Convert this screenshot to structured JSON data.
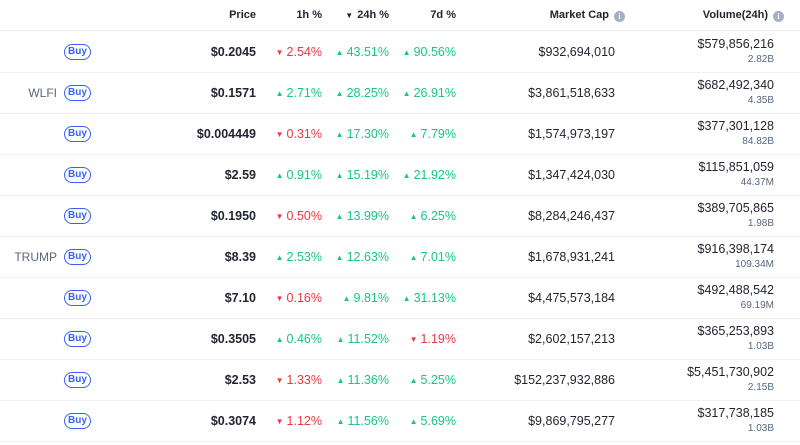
{
  "headers": {
    "price": "Price",
    "h1": "1h %",
    "h24": "24h %",
    "d7": "7d %",
    "market_cap": "Market Cap",
    "volume": "Volume(24h)"
  },
  "buy_label": "Buy",
  "colors": {
    "up": "#16c784",
    "down": "#ea3943",
    "accent": "#3861fb"
  },
  "rows": [
    {
      "symbol": "",
      "price": "$0.2045",
      "h1": "2.54%",
      "h1_dir": "down",
      "h24": "43.51%",
      "h24_dir": "up",
      "d7": "90.56%",
      "d7_dir": "up",
      "market_cap": "$932,694,010",
      "volume": "$579,856,216",
      "volume_sub": "2.82B"
    },
    {
      "symbol": "WLFI",
      "price": "$0.1571",
      "h1": "2.71%",
      "h1_dir": "up",
      "h24": "28.25%",
      "h24_dir": "up",
      "d7": "26.91%",
      "d7_dir": "up",
      "market_cap": "$3,861,518,633",
      "volume": "$682,492,340",
      "volume_sub": "4.35B"
    },
    {
      "symbol": "",
      "price": "$0.004449",
      "h1": "0.31%",
      "h1_dir": "down",
      "h24": "17.30%",
      "h24_dir": "up",
      "d7": "7.79%",
      "d7_dir": "up",
      "market_cap": "$1,574,973,197",
      "volume": "$377,301,128",
      "volume_sub": "84.82B"
    },
    {
      "symbol": "",
      "price": "$2.59",
      "h1": "0.91%",
      "h1_dir": "up",
      "h24": "15.19%",
      "h24_dir": "up",
      "d7": "21.92%",
      "d7_dir": "up",
      "market_cap": "$1,347,424,030",
      "volume": "$115,851,059",
      "volume_sub": "44.37M"
    },
    {
      "symbol": "",
      "price": "$0.1950",
      "h1": "0.50%",
      "h1_dir": "down",
      "h24": "13.99%",
      "h24_dir": "up",
      "d7": "6.25%",
      "d7_dir": "up",
      "market_cap": "$8,284,246,437",
      "volume": "$389,705,865",
      "volume_sub": "1.98B"
    },
    {
      "symbol": "TRUMP",
      "price": "$8.39",
      "h1": "2.53%",
      "h1_dir": "up",
      "h24": "12.63%",
      "h24_dir": "up",
      "d7": "7.01%",
      "d7_dir": "up",
      "market_cap": "$1,678,931,241",
      "volume": "$916,398,174",
      "volume_sub": "109.34M"
    },
    {
      "symbol": "",
      "price": "$7.10",
      "h1": "0.16%",
      "h1_dir": "down",
      "h24": "9.81%",
      "h24_dir": "up",
      "d7": "31.13%",
      "d7_dir": "up",
      "market_cap": "$4,475,573,184",
      "volume": "$492,488,542",
      "volume_sub": "69.19M"
    },
    {
      "symbol": "",
      "price": "$0.3505",
      "h1": "0.46%",
      "h1_dir": "up",
      "h24": "11.52%",
      "h24_dir": "up",
      "d7": "1.19%",
      "d7_dir": "down",
      "market_cap": "$2,602,157,213",
      "volume": "$365,253,893",
      "volume_sub": "1.03B"
    },
    {
      "symbol": "",
      "price": "$2.53",
      "h1": "1.33%",
      "h1_dir": "down",
      "h24": "11.36%",
      "h24_dir": "up",
      "d7": "5.25%",
      "d7_dir": "up",
      "market_cap": "$152,237,932,886",
      "volume": "$5,451,730,902",
      "volume_sub": "2.15B"
    },
    {
      "symbol": "",
      "price": "$0.3074",
      "h1": "1.12%",
      "h1_dir": "down",
      "h24": "11.56%",
      "h24_dir": "up",
      "d7": "5.69%",
      "d7_dir": "up",
      "market_cap": "$9,869,795,277",
      "volume": "$317,738,185",
      "volume_sub": "1.03B"
    }
  ]
}
